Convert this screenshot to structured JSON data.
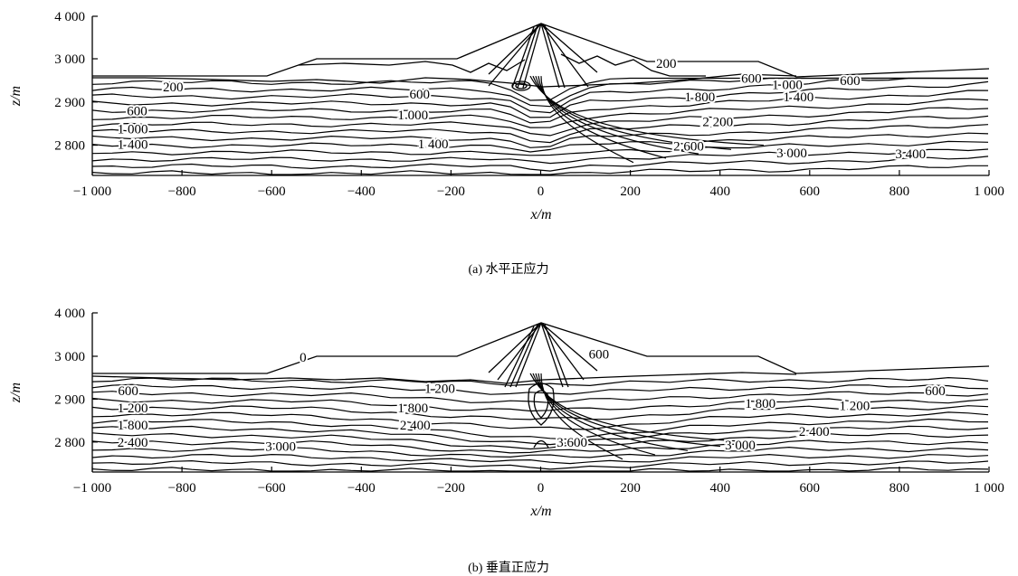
{
  "chart_data": [
    {
      "type": "contour",
      "caption": "(a)  水平正应力",
      "xlabel": "x/m",
      "ylabel": "z/m",
      "xlim": [
        -1000,
        1000
      ],
      "ylim": [
        2730,
        4000
      ],
      "x_ticks": [
        -1000,
        -800,
        -600,
        -400,
        -200,
        0,
        200,
        400,
        600,
        800,
        1000
      ],
      "x_tick_labels": [
        "−1 000",
        "−800",
        "−600",
        "−400",
        "−200",
        "0",
        "200",
        "400",
        "600",
        "800",
        "1 000"
      ],
      "y_ticks": [
        2800,
        2900,
        3000,
        4000
      ],
      "y_tick_labels": [
        "2 800",
        "2 900",
        "3 000",
        "4 000"
      ],
      "contour_labels": [
        {
          "text": "200",
          "x": -820,
          "z": 2935
        },
        {
          "text": "600",
          "x": -900,
          "z": 2880
        },
        {
          "text": "1 000",
          "x": -910,
          "z": 2838
        },
        {
          "text": "1 400",
          "x": -910,
          "z": 2802
        },
        {
          "text": "600",
          "x": -270,
          "z": 2918
        },
        {
          "text": "1 000",
          "x": -285,
          "z": 2870
        },
        {
          "text": "1 400",
          "x": -240,
          "z": 2803
        },
        {
          "text": "200",
          "x": 280,
          "z": 2990
        },
        {
          "text": "600",
          "x": 470,
          "z": 2955
        },
        {
          "text": "1 000",
          "x": 550,
          "z": 2940
        },
        {
          "text": "600",
          "x": 690,
          "z": 2950
        },
        {
          "text": "1 800",
          "x": 355,
          "z": 2912
        },
        {
          "text": "1 400",
          "x": 575,
          "z": 2912
        },
        {
          "text": "2 200",
          "x": 395,
          "z": 2855
        },
        {
          "text": "2 600",
          "x": 330,
          "z": 2798
        },
        {
          "text": "3 000",
          "x": 560,
          "z": 2782
        },
        {
          "text": "3 400",
          "x": 825,
          "z": 2780
        }
      ]
    },
    {
      "type": "contour",
      "caption": "(b)  垂直正应力",
      "xlabel": "x/m",
      "ylabel": "z/m",
      "xlim": [
        -1000,
        1000
      ],
      "ylim": [
        2730,
        4000
      ],
      "x_ticks": [
        -1000,
        -800,
        -600,
        -400,
        -200,
        0,
        200,
        400,
        600,
        800,
        1000
      ],
      "x_tick_labels": [
        "−1 000",
        "−800",
        "−600",
        "−400",
        "−200",
        "0",
        "200",
        "400",
        "600",
        "800",
        "1 000"
      ],
      "y_ticks": [
        2800,
        2900,
        3000,
        4000
      ],
      "y_tick_labels": [
        "2 800",
        "2 900",
        "3 000",
        "4 000"
      ],
      "contour_labels": [
        {
          "text": "0",
          "x": -530,
          "z": 2998
        },
        {
          "text": "600",
          "x": -920,
          "z": 2920
        },
        {
          "text": "1 200",
          "x": -910,
          "z": 2880
        },
        {
          "text": "1 800",
          "x": -910,
          "z": 2840
        },
        {
          "text": "2 400",
          "x": -910,
          "z": 2800
        },
        {
          "text": "1 200",
          "x": -225,
          "z": 2925
        },
        {
          "text": "1 800",
          "x": -285,
          "z": 2880
        },
        {
          "text": "2 400",
          "x": -280,
          "z": 2840
        },
        {
          "text": "3 000",
          "x": -580,
          "z": 2790
        },
        {
          "text": "600",
          "x": 130,
          "z": 3048
        },
        {
          "text": "1 800",
          "x": 490,
          "z": 2890
        },
        {
          "text": "1 200",
          "x": 700,
          "z": 2885
        },
        {
          "text": "600",
          "x": 880,
          "z": 2920
        },
        {
          "text": "2 400",
          "x": 610,
          "z": 2825
        },
        {
          "text": "3 000",
          "x": 445,
          "z": 2793
        },
        {
          "text": "3 600",
          "x": 70,
          "z": 2800
        }
      ]
    }
  ]
}
